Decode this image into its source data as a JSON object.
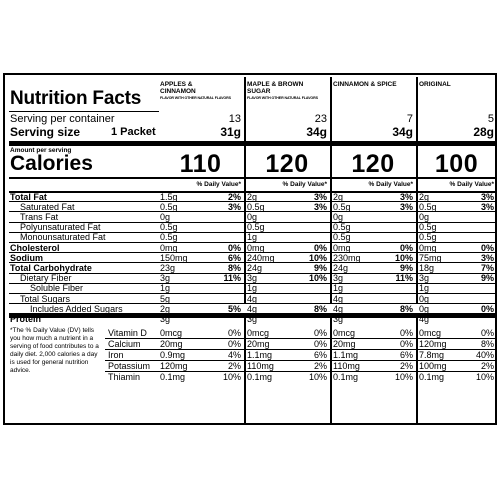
{
  "header": {
    "title": "Nutrition Facts",
    "serving_per_container_label": "Serving per container",
    "serving_size_label": "Serving size",
    "serving_size_value": "1 Packet",
    "amount_per_serving": "Amount per serving",
    "calories_label": "Calories",
    "daily_value_header": "% Daily Value*"
  },
  "products": [
    {
      "name_line1": "APPLES &",
      "name_line2": "CINNAMON",
      "subtitle": "FLAVOR WITH OTHER NATURAL FLAVORS",
      "servings": "13",
      "size": "31g",
      "calories": "110"
    },
    {
      "name_line1": "MAPLE & BROWN",
      "name_line2": "SUGAR",
      "subtitle": "FLAVOR WITH OTHER NATURAL FLAVORS",
      "servings": "23",
      "size": "34g",
      "calories": "120"
    },
    {
      "name_line1": "CINNAMON & SPICE",
      "name_line2": "",
      "subtitle": "",
      "servings": "7",
      "size": "34g",
      "calories": "120"
    },
    {
      "name_line1": "ORIGINAL",
      "name_line2": "",
      "subtitle": "",
      "servings": "5",
      "size": "28g",
      "calories": "100"
    }
  ],
  "nutrients": [
    {
      "label": "Total Fat",
      "bold": true,
      "indent": 0,
      "values": [
        [
          "1.5g",
          "2%"
        ],
        [
          "2g",
          "3%"
        ],
        [
          "2g",
          "3%"
        ],
        [
          "2g",
          "3%"
        ]
      ]
    },
    {
      "label": "Saturated Fat",
      "bold": false,
      "indent": 1,
      "values": [
        [
          "0.5g",
          "3%"
        ],
        [
          "0.5g",
          "3%"
        ],
        [
          "0.5g",
          "3%"
        ],
        [
          "0.5g",
          "3%"
        ]
      ]
    },
    {
      "label": "Trans Fat",
      "bold": false,
      "indent": 1,
      "values": [
        [
          "0g",
          ""
        ],
        [
          "0g",
          ""
        ],
        [
          "0g",
          ""
        ],
        [
          "0g",
          ""
        ]
      ]
    },
    {
      "label": "Polyunsaturated Fat",
      "bold": false,
      "indent": 1,
      "values": [
        [
          "0.5g",
          ""
        ],
        [
          "0.5g",
          ""
        ],
        [
          "0.5g",
          ""
        ],
        [
          "0.5g",
          ""
        ]
      ]
    },
    {
      "label": "Monounsaturated Fat",
      "bold": false,
      "indent": 1,
      "values": [
        [
          "0.5g",
          ""
        ],
        [
          "1g",
          ""
        ],
        [
          "0.5g",
          ""
        ],
        [
          "0.5g",
          ""
        ]
      ]
    },
    {
      "label": "Cholesterol",
      "bold": true,
      "indent": 0,
      "values": [
        [
          "0mg",
          "0%"
        ],
        [
          "0mg",
          "0%"
        ],
        [
          "0mg",
          "0%"
        ],
        [
          "0mg",
          "0%"
        ]
      ]
    },
    {
      "label": "Sodium",
      "bold": true,
      "indent": 0,
      "values": [
        [
          "150mg",
          "6%"
        ],
        [
          "240mg",
          "10%"
        ],
        [
          "230mg",
          "10%"
        ],
        [
          "75mg",
          "3%"
        ]
      ]
    },
    {
      "label": "Total Carbohydrate",
      "bold": true,
      "indent": 0,
      "values": [
        [
          "23g",
          "8%"
        ],
        [
          "24g",
          "9%"
        ],
        [
          "24g",
          "9%"
        ],
        [
          "18g",
          "7%"
        ]
      ]
    },
    {
      "label": "Dietary Fiber",
      "bold": false,
      "indent": 1,
      "values": [
        [
          "3g",
          "11%"
        ],
        [
          "3g",
          "10%"
        ],
        [
          "3g",
          "11%"
        ],
        [
          "3g",
          "9%"
        ]
      ]
    },
    {
      "label": "Soluble Fiber",
      "bold": false,
      "indent": 2,
      "values": [
        [
          "1g",
          ""
        ],
        [
          "1g",
          ""
        ],
        [
          "1g",
          ""
        ],
        [
          "1g",
          ""
        ]
      ]
    },
    {
      "label": "Total Sugars",
      "bold": false,
      "indent": 1,
      "values": [
        [
          "5g",
          ""
        ],
        [
          "4g",
          ""
        ],
        [
          "4g",
          ""
        ],
        [
          "0g",
          ""
        ]
      ]
    },
    {
      "label": "Includes Added Sugars",
      "bold": false,
      "indent": 2,
      "values": [
        [
          "2g",
          "5%"
        ],
        [
          "4g",
          "8%"
        ],
        [
          "4g",
          "8%"
        ],
        [
          "0g",
          "0%"
        ]
      ]
    },
    {
      "label": "Protein",
      "bold": true,
      "indent": 0,
      "values": [
        [
          "3g",
          ""
        ],
        [
          "3g",
          ""
        ],
        [
          "3g",
          ""
        ],
        [
          "4g",
          ""
        ]
      ]
    }
  ],
  "footnote": "*The % Daily Value (DV) tells you how much a nutrient in a serving of food contributes to a daily diet. 2,000 calories a day is used for general nutrition advice.",
  "vitamins": [
    {
      "label": "Vitamin D",
      "values": [
        [
          "0mcg",
          "0%"
        ],
        [
          "0mcg",
          "0%"
        ],
        [
          "0mcg",
          "0%"
        ],
        [
          "0mcg",
          "0%"
        ]
      ]
    },
    {
      "label": "Calcium",
      "values": [
        [
          "20mg",
          "0%"
        ],
        [
          "20mg",
          "0%"
        ],
        [
          "20mg",
          "0%"
        ],
        [
          "120mg",
          "8%"
        ]
      ]
    },
    {
      "label": "Iron",
      "values": [
        [
          "0.9mg",
          "4%"
        ],
        [
          "1.1mg",
          "6%"
        ],
        [
          "1.1mg",
          "6%"
        ],
        [
          "7.8mg",
          "40%"
        ]
      ]
    },
    {
      "label": "Potassium",
      "values": [
        [
          "120mg",
          "2%"
        ],
        [
          "110mg",
          "2%"
        ],
        [
          "110mg",
          "2%"
        ],
        [
          "100mg",
          "2%"
        ]
      ]
    },
    {
      "label": "Thiamin",
      "values": [
        [
          "0.1mg",
          "10%"
        ],
        [
          "0.1mg",
          "10%"
        ],
        [
          "0.1mg",
          "10%"
        ],
        [
          "0.1mg",
          "10%"
        ]
      ]
    }
  ]
}
